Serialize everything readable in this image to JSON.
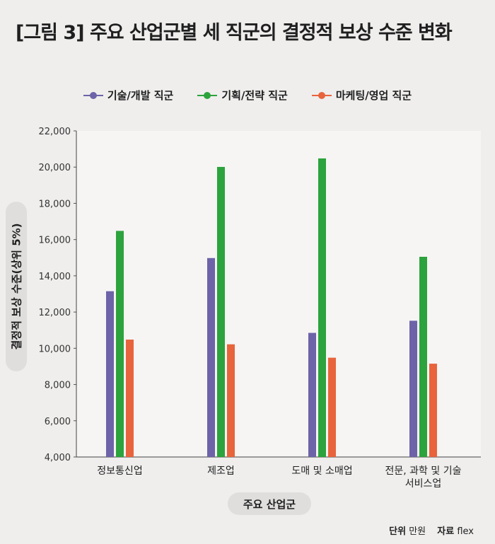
{
  "title": "[그림 3] 주요 산업군별 세 직군의 결정적 보상 수준 변화",
  "footer": {
    "unit_label": "단위",
    "unit_value": "만원",
    "source_label": "자료",
    "source_value": "flex"
  },
  "chart_data": {
    "type": "bar",
    "xlabel": "주요 산업군",
    "ylabel": "결정적 보상 수준(상위 5%)",
    "ylim": [
      4000,
      22000
    ],
    "y_ticks": [
      "4,000",
      "6,000",
      "8,000",
      "10,000",
      "12,000",
      "14,000",
      "16,000",
      "18,000",
      "20,000",
      "22,000"
    ],
    "grid": false,
    "legend_position": "top",
    "categories": [
      [
        "정보통신업"
      ],
      [
        "제조업"
      ],
      [
        "도매 및 소매업"
      ],
      [
        "전문, 과학 및 기술",
        "서비스업"
      ]
    ],
    "series": [
      {
        "name": "기술/개발 직군",
        "color": "#6c63a8",
        "values": [
          13150,
          14980,
          10850,
          11520
        ]
      },
      {
        "name": "기획/전략 직군",
        "color": "#2ca33c",
        "values": [
          16480,
          20010,
          20480,
          15050
        ]
      },
      {
        "name": "마케팅/영업 직군",
        "color": "#e8643c",
        "values": [
          10480,
          10220,
          9480,
          9150
        ]
      }
    ]
  }
}
